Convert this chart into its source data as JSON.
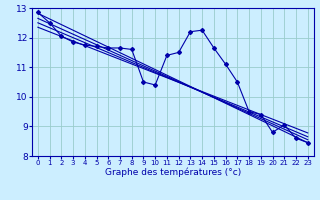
{
  "xlabel": "Graphe des températures (°c)",
  "bg_color": "#cceeff",
  "grid_color": "#99cccc",
  "line_color": "#0000aa",
  "xlim": [
    -0.5,
    23.5
  ],
  "ylim": [
    8,
    13
  ],
  "yticks": [
    8,
    9,
    10,
    11,
    12,
    13
  ],
  "xticks": [
    0,
    1,
    2,
    3,
    4,
    5,
    6,
    7,
    8,
    9,
    10,
    11,
    12,
    13,
    14,
    15,
    16,
    17,
    18,
    19,
    20,
    21,
    22,
    23
  ],
  "main_x": [
    0,
    1,
    2,
    3,
    4,
    5,
    6,
    7,
    8,
    9,
    10,
    11,
    12,
    13,
    14,
    15,
    16,
    17,
    18,
    19,
    20,
    21,
    22,
    23
  ],
  "main_y": [
    12.85,
    12.5,
    12.05,
    11.85,
    11.75,
    11.7,
    11.65,
    11.65,
    11.6,
    10.5,
    10.4,
    11.4,
    11.5,
    12.2,
    12.25,
    11.65,
    11.1,
    10.5,
    9.5,
    9.4,
    8.8,
    9.05,
    8.6,
    8.45
  ],
  "trend_lines": [
    {
      "x": [
        0,
        23
      ],
      "y": [
        12.82,
        8.45
      ]
    },
    {
      "x": [
        0,
        23
      ],
      "y": [
        12.65,
        8.55
      ]
    },
    {
      "x": [
        0,
        23
      ],
      "y": [
        12.5,
        8.65
      ]
    },
    {
      "x": [
        0,
        23
      ],
      "y": [
        12.35,
        8.78
      ]
    }
  ]
}
